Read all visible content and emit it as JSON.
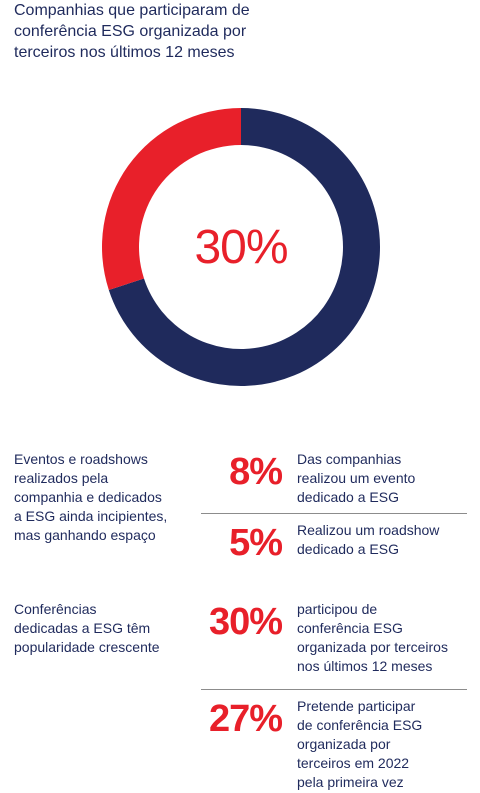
{
  "title_lines": [
    "Companhias que participaram de",
    "conferência ESG organizada por",
    "terceiros nos últimos 12 meses"
  ],
  "colors": {
    "accent_red": "#e8202a",
    "navy": "#1f2a5c"
  },
  "chart_data": {
    "type": "pie",
    "variant": "donut",
    "center_label": "30%",
    "slices": [
      {
        "value": 30,
        "color": "#e8202a"
      },
      {
        "value": 70,
        "color": "#1f2a5c"
      }
    ]
  },
  "groups": [
    {
      "label_lines": [
        "Eventos e roadshows",
        "realizados pela",
        "companhia e dedicados",
        "a ESG ainda incipientes,",
        "mas ganhando espaço"
      ],
      "stats": [
        {
          "value": "8%",
          "desc_lines": [
            "Das companhias",
            "realizou um evento",
            "dedicado a ESG"
          ]
        },
        {
          "value": "5%",
          "desc_lines": [
            "Realizou um roadshow",
            "dedicado a ESG"
          ]
        }
      ]
    },
    {
      "label_lines": [
        "Conferências",
        "dedicadas a ESG têm",
        "popularidade crescente"
      ],
      "stats": [
        {
          "value": "30%",
          "desc_lines": [
            "participou de",
            "conferência ESG",
            "organizada por terceiros",
            "nos últimos 12 meses"
          ]
        },
        {
          "value": "27%",
          "desc_lines": [
            "Pretende participar",
            "de conferência ESG",
            "organizada por",
            "terceiros em 2022",
            "pela primeira vez"
          ]
        }
      ]
    }
  ]
}
